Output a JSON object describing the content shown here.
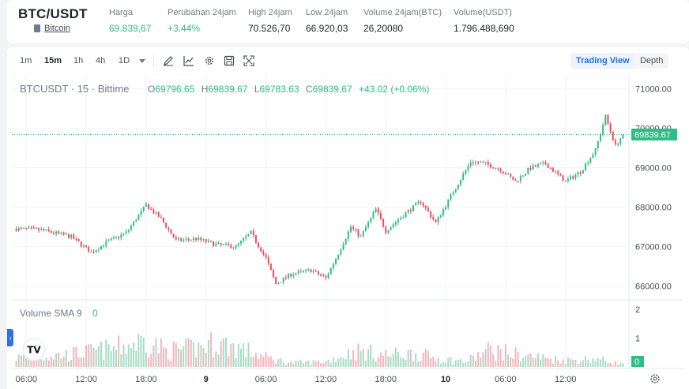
{
  "ticker": {
    "pair": "BTC/USDT",
    "coin_name": "Bitcoin",
    "stats": [
      {
        "label": "Harga",
        "value": "69.839,67",
        "tone": "up"
      },
      {
        "label": "Perubahan 24jam",
        "value": "+3.44%",
        "tone": "up"
      },
      {
        "label": "High 24jam",
        "value": "70.526,70",
        "tone": "normal"
      },
      {
        "label": "Low 24jam",
        "value": "66.920,03",
        "tone": "normal"
      },
      {
        "label": "Volume 24jam(BTC)",
        "value": "26,20080",
        "tone": "normal"
      },
      {
        "label": "Volume(USDT)",
        "value": "1.796.488,690",
        "tone": "normal"
      }
    ]
  },
  "toolbar": {
    "timeframes": [
      "1m",
      "15m",
      "1h",
      "4h",
      "1D"
    ],
    "active_timeframe": "15m",
    "icons": [
      "pencil-icon",
      "indicator-icon",
      "settings-icon",
      "save-icon",
      "fullscreen-icon"
    ],
    "trading_view_label": "Trading View",
    "depth_label": "Depth"
  },
  "chart": {
    "symbol_line": "BTCUSDT · 15 · Bittime",
    "o_label": "O",
    "o_value": "69796.65",
    "h_label": "H",
    "h_value": "69839.67",
    "l_label": "L",
    "l_value": "69783.63",
    "c_label": "C",
    "c_value": "69839.67",
    "change": "+43.02 (+0.06%)",
    "last_price_label": "69839.67",
    "volume_label": "Volume SMA 9",
    "volume_value": "0",
    "volume_axis_last": "0",
    "logo_text": "TV"
  },
  "colors": {
    "up": "#2ebd85",
    "down": "#f6465d",
    "vol_up": "#a6dcc4",
    "vol_down": "#f6b3bc",
    "accent": "#1f6fe5"
  },
  "chart_data": {
    "type": "candlestick",
    "price_axis": {
      "ticks": [
        66000,
        67000,
        68000,
        69000,
        70000,
        71000
      ],
      "tick_labels": [
        "66000.00",
        "67000.00",
        "68000.00",
        "69000.00",
        "70000.00",
        "71000.00"
      ],
      "range": [
        65650,
        71350
      ]
    },
    "volume_axis": {
      "ticks": [
        1,
        2
      ],
      "range": [
        0,
        2.3
      ]
    },
    "time_axis": {
      "labels": [
        "06:00",
        "12:00",
        "18:00",
        "9",
        "06:00",
        "12:00",
        "18:00",
        "10",
        "06:00",
        "12:00"
      ],
      "label_candle_index": [
        4,
        28,
        52,
        76,
        100,
        124,
        148,
        172,
        196,
        220
      ]
    },
    "last_price": 69839.67,
    "anchors_price": [
      [
        0,
        67450
      ],
      [
        10,
        67420
      ],
      [
        22,
        67250
      ],
      [
        30,
        66850
      ],
      [
        36,
        67100
      ],
      [
        44,
        67350
      ],
      [
        52,
        68050
      ],
      [
        58,
        67700
      ],
      [
        64,
        67150
      ],
      [
        72,
        67200
      ],
      [
        80,
        67050
      ],
      [
        88,
        67000
      ],
      [
        94,
        67350
      ],
      [
        100,
        66700
      ],
      [
        104,
        66050
      ],
      [
        110,
        66300
      ],
      [
        118,
        66400
      ],
      [
        124,
        66200
      ],
      [
        128,
        66700
      ],
      [
        134,
        67500
      ],
      [
        138,
        67250
      ],
      [
        144,
        67950
      ],
      [
        148,
        67400
      ],
      [
        156,
        67850
      ],
      [
        162,
        68150
      ],
      [
        168,
        67600
      ],
      [
        176,
        68500
      ],
      [
        182,
        69150
      ],
      [
        188,
        69100
      ],
      [
        194,
        68950
      ],
      [
        200,
        68650
      ],
      [
        206,
        69000
      ],
      [
        212,
        69100
      ],
      [
        220,
        68650
      ],
      [
        226,
        68900
      ],
      [
        232,
        69450
      ],
      [
        236,
        70300
      ],
      [
        240,
        69550
      ],
      [
        243,
        69840
      ]
    ],
    "volume_profile": [
      [
        0,
        0.35
      ],
      [
        20,
        0.45
      ],
      [
        40,
        0.7
      ],
      [
        52,
        1.0
      ],
      [
        60,
        0.6
      ],
      [
        72,
        0.7
      ],
      [
        80,
        0.9
      ],
      [
        88,
        0.75
      ],
      [
        100,
        0.35
      ],
      [
        110,
        0.15
      ],
      [
        124,
        0.2
      ],
      [
        136,
        0.6
      ],
      [
        148,
        0.45
      ],
      [
        160,
        0.5
      ],
      [
        170,
        0.3
      ],
      [
        180,
        0.2
      ],
      [
        190,
        0.65
      ],
      [
        198,
        0.5
      ],
      [
        210,
        0.35
      ],
      [
        220,
        0.25
      ],
      [
        232,
        0.3
      ],
      [
        243,
        0.1
      ]
    ]
  }
}
